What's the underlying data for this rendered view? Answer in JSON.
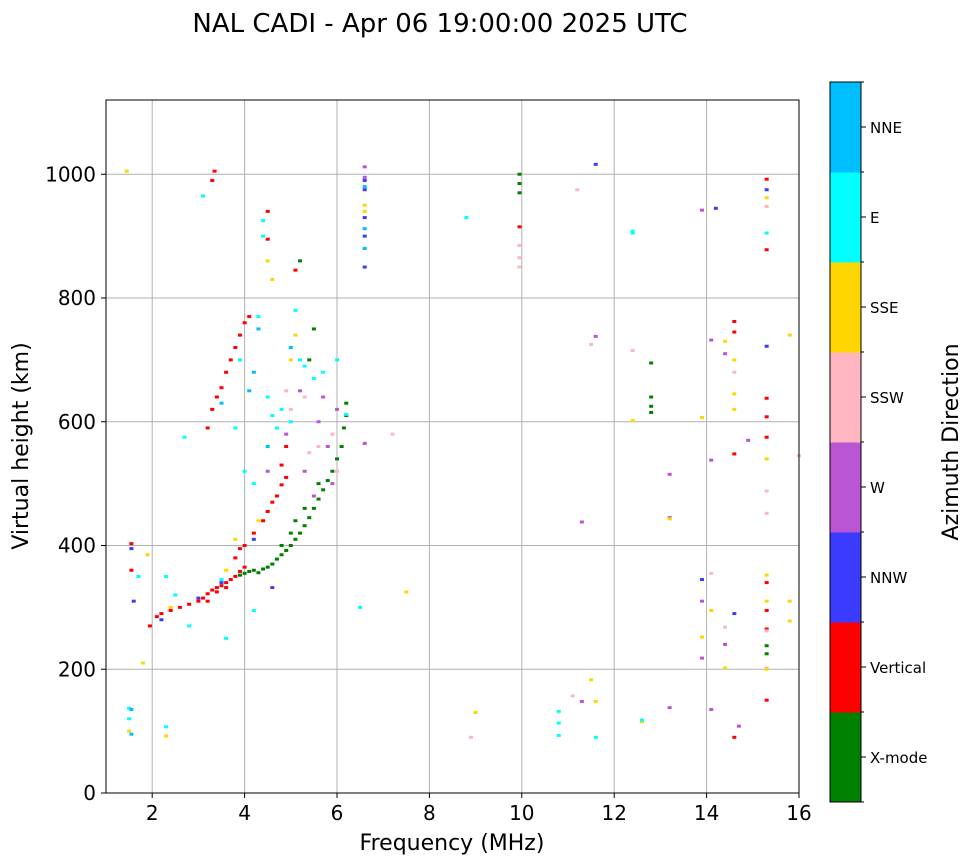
{
  "chart_data": {
    "type": "scatter",
    "title": "NAL CADI - Apr 06 19:00:00 2025 UTC",
    "xlabel": "Frequency (MHz)",
    "ylabel": "Virtual height (km)",
    "xlim": [
      1,
      16
    ],
    "ylim": [
      0,
      1120
    ],
    "xticks": [
      2,
      4,
      6,
      8,
      10,
      12,
      14,
      16
    ],
    "yticks": [
      0,
      200,
      400,
      600,
      800,
      1000
    ],
    "grid": true,
    "colorbar": {
      "label": "Azimuth Direction",
      "position": "right",
      "categories": [
        {
          "name": "X-mode",
          "color": "#008000"
        },
        {
          "name": "Vertical",
          "color": "#ff0000"
        },
        {
          "name": "NNW",
          "color": "#3b3bff"
        },
        {
          "name": "W",
          "color": "#ba55d3"
        },
        {
          "name": "SSW",
          "color": "#ffb6c1"
        },
        {
          "name": "SSE",
          "color": "#ffd700"
        },
        {
          "name": "E",
          "color": "#00ffff"
        },
        {
          "name": "NNE",
          "color": "#00bfff"
        }
      ]
    },
    "series": [
      {
        "name": "X-mode",
        "points": [
          [
            3.9,
            352
          ],
          [
            4.0,
            355
          ],
          [
            4.1,
            358
          ],
          [
            4.2,
            360
          ],
          [
            4.3,
            356
          ],
          [
            4.4,
            362
          ],
          [
            4.5,
            365
          ],
          [
            4.6,
            370
          ],
          [
            4.7,
            378
          ],
          [
            4.8,
            385
          ],
          [
            4.9,
            392
          ],
          [
            5.0,
            400
          ],
          [
            5.1,
            410
          ],
          [
            5.2,
            420
          ],
          [
            5.3,
            432
          ],
          [
            5.4,
            445
          ],
          [
            5.5,
            460
          ],
          [
            5.6,
            475
          ],
          [
            5.7,
            490
          ],
          [
            5.8,
            505
          ],
          [
            5.9,
            520
          ],
          [
            6.0,
            540
          ],
          [
            6.1,
            560
          ],
          [
            6.15,
            590
          ],
          [
            6.2,
            610
          ],
          [
            6.2,
            630
          ],
          [
            5.1,
            440
          ],
          [
            5.3,
            460
          ],
          [
            5.0,
            420
          ],
          [
            4.8,
            400
          ],
          [
            5.6,
            500
          ],
          [
            5.5,
            750
          ],
          [
            5.4,
            700
          ],
          [
            5.2,
            860
          ],
          [
            9.95,
            970
          ],
          [
            9.95,
            985
          ],
          [
            9.95,
            1000
          ],
          [
            12.8,
            695
          ],
          [
            12.8,
            640
          ],
          [
            12.8,
            625
          ],
          [
            12.8,
            615
          ],
          [
            15.3,
            238
          ],
          [
            15.3,
            225
          ]
        ]
      },
      {
        "name": "Vertical",
        "points": [
          [
            1.55,
            403
          ],
          [
            1.55,
            360
          ],
          [
            1.95,
            270
          ],
          [
            2.1,
            285
          ],
          [
            2.2,
            290
          ],
          [
            2.4,
            295
          ],
          [
            2.6,
            300
          ],
          [
            2.8,
            305
          ],
          [
            3.0,
            310
          ],
          [
            3.1,
            315
          ],
          [
            3.2,
            322
          ],
          [
            3.3,
            328
          ],
          [
            3.4,
            332
          ],
          [
            3.5,
            335
          ],
          [
            3.6,
            340
          ],
          [
            3.7,
            345
          ],
          [
            3.8,
            350
          ],
          [
            3.9,
            358
          ],
          [
            4.0,
            365
          ],
          [
            3.2,
            310
          ],
          [
            3.4,
            325
          ],
          [
            3.6,
            332
          ],
          [
            3.8,
            380
          ],
          [
            3.9,
            395
          ],
          [
            4.0,
            400
          ],
          [
            4.2,
            420
          ],
          [
            4.4,
            440
          ],
          [
            4.5,
            455
          ],
          [
            4.6,
            470
          ],
          [
            4.7,
            480
          ],
          [
            4.8,
            498
          ],
          [
            4.9,
            510
          ],
          [
            3.3,
            620
          ],
          [
            3.4,
            640
          ],
          [
            3.5,
            655
          ],
          [
            3.6,
            680
          ],
          [
            3.7,
            700
          ],
          [
            3.8,
            720
          ],
          [
            3.9,
            740
          ],
          [
            4.0,
            760
          ],
          [
            4.1,
            770
          ],
          [
            3.2,
            590
          ],
          [
            4.8,
            530
          ],
          [
            4.9,
            560
          ],
          [
            3.35,
            1005
          ],
          [
            3.3,
            990
          ],
          [
            4.5,
            940
          ],
          [
            4.5,
            895
          ],
          [
            5.1,
            845
          ],
          [
            9.95,
            915
          ],
          [
            15.3,
            992
          ],
          [
            15.3,
            878
          ],
          [
            14.6,
            762
          ],
          [
            14.6,
            745
          ],
          [
            14.6,
            548
          ],
          [
            15.3,
            638
          ],
          [
            15.3,
            608
          ],
          [
            15.3,
            575
          ],
          [
            15.3,
            340
          ],
          [
            15.3,
            295
          ],
          [
            15.3,
            265
          ],
          [
            15.3,
            150
          ],
          [
            14.6,
            90
          ]
        ]
      },
      {
        "name": "NNW",
        "points": [
          [
            1.55,
            395
          ],
          [
            1.6,
            310
          ],
          [
            2.2,
            280
          ],
          [
            3.0,
            315
          ],
          [
            3.5,
            340
          ],
          [
            4.6,
            332
          ],
          [
            4.2,
            410
          ],
          [
            6.6,
            990
          ],
          [
            6.6,
            975
          ],
          [
            6.6,
            850
          ],
          [
            11.6,
            1016
          ],
          [
            14.2,
            945
          ],
          [
            15.3,
            975
          ],
          [
            15.3,
            722
          ],
          [
            14.6,
            290
          ],
          [
            13.9,
            345
          ],
          [
            6.6,
            930
          ],
          [
            6.6,
            900
          ]
        ]
      },
      {
        "name": "W",
        "points": [
          [
            5.3,
            520
          ],
          [
            5.6,
            600
          ],
          [
            5.7,
            640
          ],
          [
            5.8,
            560
          ],
          [
            5.9,
            500
          ],
          [
            6.0,
            620
          ],
          [
            5.5,
            480
          ],
          [
            4.9,
            580
          ],
          [
            6.6,
            1012
          ],
          [
            6.6,
            995
          ],
          [
            6.6,
            565
          ],
          [
            11.3,
            438
          ],
          [
            11.6,
            738
          ],
          [
            13.2,
            515
          ],
          [
            13.2,
            445
          ],
          [
            14.1,
            732
          ],
          [
            14.1,
            538
          ],
          [
            14.4,
            710
          ],
          [
            14.9,
            570
          ],
          [
            13.9,
            942
          ],
          [
            13.9,
            310
          ],
          [
            13.9,
            218
          ],
          [
            14.1,
            135
          ],
          [
            14.4,
            240
          ],
          [
            14.7,
            108
          ],
          [
            13.2,
            138
          ],
          [
            11.3,
            148
          ],
          [
            5.2,
            650
          ],
          [
            4.5,
            520
          ]
        ]
      },
      {
        "name": "SSW",
        "points": [
          [
            5.4,
            550
          ],
          [
            5.6,
            560
          ],
          [
            5.9,
            580
          ],
          [
            6.0,
            520
          ],
          [
            4.9,
            650
          ],
          [
            5.0,
            620
          ],
          [
            5.3,
            640
          ],
          [
            9.95,
            885
          ],
          [
            9.95,
            865
          ],
          [
            9.95,
            850
          ],
          [
            11.2,
            975
          ],
          [
            11.5,
            725
          ],
          [
            12.4,
            715
          ],
          [
            14.1,
            355
          ],
          [
            14.4,
            268
          ],
          [
            15.3,
            948
          ],
          [
            15.3,
            488
          ],
          [
            15.3,
            452
          ],
          [
            15.3,
            262
          ],
          [
            15.3,
            202
          ],
          [
            16.0,
            545
          ],
          [
            11.1,
            157
          ],
          [
            8.9,
            90
          ],
          [
            7.2,
            580
          ],
          [
            14.6,
            680
          ]
        ]
      },
      {
        "name": "SSE",
        "points": [
          [
            1.45,
            1005
          ],
          [
            1.5,
            100
          ],
          [
            2.3,
            92
          ],
          [
            1.9,
            385
          ],
          [
            2.4,
            300
          ],
          [
            3.6,
            360
          ],
          [
            3.8,
            410
          ],
          [
            4.5,
            860
          ],
          [
            4.6,
            830
          ],
          [
            5.0,
            700
          ],
          [
            5.1,
            740
          ],
          [
            4.3,
            440
          ],
          [
            6.6,
            950
          ],
          [
            6.6,
            940
          ],
          [
            7.5,
            325
          ],
          [
            9.0,
            130
          ],
          [
            12.4,
            602
          ],
          [
            12.6,
            115
          ],
          [
            13.2,
            443
          ],
          [
            13.9,
            607
          ],
          [
            13.9,
            252
          ],
          [
            14.1,
            295
          ],
          [
            14.4,
            730
          ],
          [
            14.6,
            700
          ],
          [
            14.6,
            645
          ],
          [
            14.6,
            620
          ],
          [
            14.4,
            202
          ],
          [
            15.3,
            962
          ],
          [
            15.3,
            540
          ],
          [
            15.3,
            352
          ],
          [
            15.3,
            310
          ],
          [
            15.3,
            200
          ],
          [
            15.8,
            740
          ],
          [
            15.8,
            310
          ],
          [
            15.8,
            278
          ],
          [
            1.8,
            210
          ],
          [
            11.6,
            148
          ],
          [
            11.5,
            183
          ]
        ]
      },
      {
        "name": "E",
        "points": [
          [
            1.7,
            350
          ],
          [
            2.3,
            350
          ],
          [
            2.5,
            320
          ],
          [
            2.7,
            575
          ],
          [
            3.1,
            965
          ],
          [
            3.5,
            345
          ],
          [
            3.8,
            590
          ],
          [
            3.9,
            700
          ],
          [
            4.2,
            500
          ],
          [
            4.3,
            770
          ],
          [
            4.4,
            900
          ],
          [
            4.4,
            925
          ],
          [
            4.5,
            640
          ],
          [
            4.6,
            610
          ],
          [
            4.7,
            590
          ],
          [
            4.8,
            620
          ],
          [
            5.1,
            780
          ],
          [
            5.2,
            700
          ],
          [
            5.3,
            690
          ],
          [
            5.5,
            670
          ],
          [
            5.7,
            680
          ],
          [
            6.0,
            700
          ],
          [
            4.0,
            520
          ],
          [
            6.5,
            300
          ],
          [
            8.8,
            930
          ],
          [
            12.4,
            908
          ],
          [
            12.4,
            905
          ],
          [
            10.8,
            132
          ],
          [
            10.8,
            113
          ],
          [
            10.8,
            93
          ],
          [
            11.6,
            90
          ],
          [
            12.6,
            118
          ],
          [
            15.3,
            905
          ],
          [
            4.2,
            295
          ],
          [
            3.6,
            250
          ],
          [
            2.8,
            270
          ],
          [
            1.5,
            137
          ],
          [
            1.5,
            120
          ],
          [
            2.3,
            107
          ],
          [
            5.0,
            600
          ],
          [
            6.2,
            612
          ]
        ]
      },
      {
        "name": "NNE",
        "points": [
          [
            1.55,
            135
          ],
          [
            1.55,
            95
          ],
          [
            3.5,
            630
          ],
          [
            4.1,
            650
          ],
          [
            4.2,
            680
          ],
          [
            4.3,
            750
          ],
          [
            4.5,
            560
          ],
          [
            6.6,
            980
          ],
          [
            6.6,
            912
          ],
          [
            6.6,
            880
          ],
          [
            5.0,
            720
          ]
        ]
      }
    ]
  }
}
